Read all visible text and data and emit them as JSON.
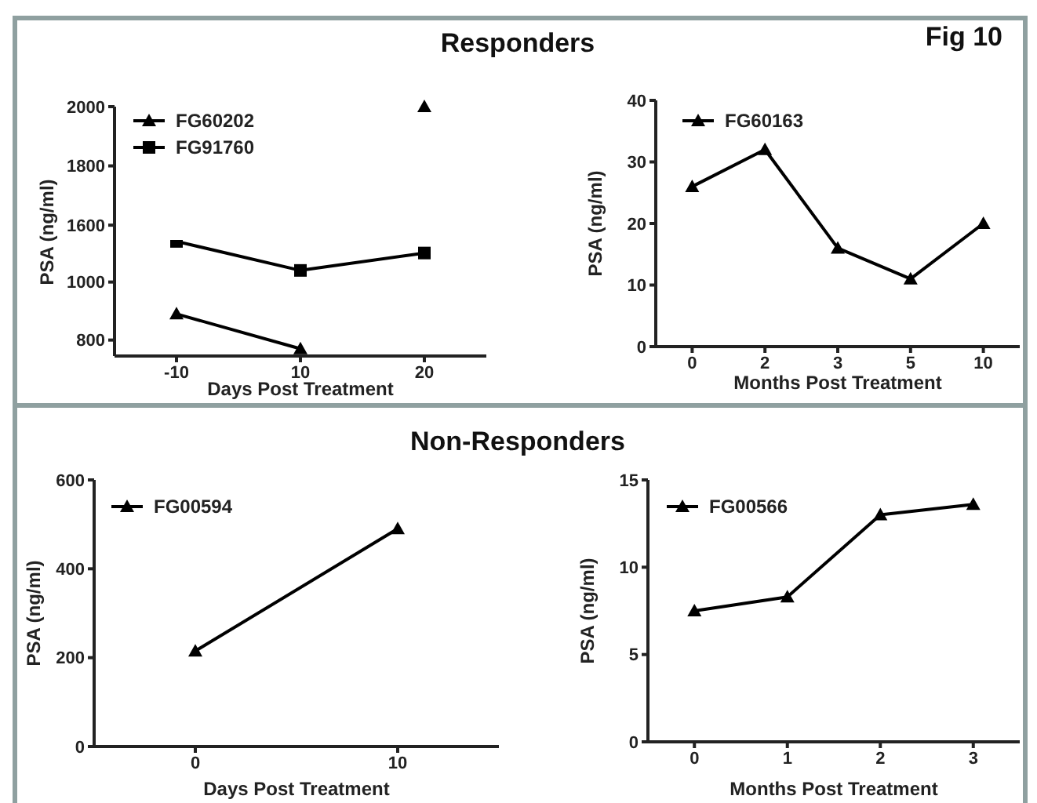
{
  "chart_data": [
    {
      "type": "line",
      "title": "Responders",
      "annotations": [
        "Fig 10"
      ],
      "categories": [
        "-10",
        "10",
        "20"
      ],
      "ylim": [
        1550,
        2000
      ],
      "yticks": [
        1600,
        1800,
        2000
      ],
      "tick_labels": "y",
      "series": [
        {
          "color": "#000000",
          "marker": "triangle",
          "values": [
            null,
            null,
            2000
          ]
        }
      ]
    },
    {
      "type": "line",
      "xlabel": "Days Post Treatment",
      "ylabel": "PSA (ng/ml)",
      "categories": [
        "-10",
        "10",
        "20"
      ],
      "ylim": [
        745,
        1145
      ],
      "yticks": [
        800,
        1000
      ],
      "legend": "top left",
      "series": [
        {
          "name": "FG60202",
          "color": "#000000",
          "marker": "triangle",
          "values": [
            890,
            770,
            null
          ]
        },
        {
          "name": "FG91760",
          "color": "#000000",
          "marker": "square",
          "values": [
            1140,
            1040,
            1100
          ]
        }
      ]
    },
    {
      "type": "line",
      "xlabel": "Months Post Treatment",
      "ylabel": "PSA (ng/ml)",
      "categories": [
        "0",
        "2",
        "3",
        "5",
        "10"
      ],
      "ylim": [
        0,
        40
      ],
      "yticks": [
        0,
        10,
        20,
        30,
        40
      ],
      "legend": "top left",
      "series": [
        {
          "name": "FG60163",
          "color": "#000000",
          "marker": "triangle",
          "values": [
            26,
            32,
            16,
            11,
            20
          ]
        }
      ]
    },
    {
      "type": "line",
      "title": "Non-Responders",
      "xlabel": "Days Post Treatment",
      "ylabel": "PSA (ng/ml)",
      "x": [
        0,
        10
      ],
      "xlim": [
        -5,
        15
      ],
      "xticks": [
        0,
        10
      ],
      "ylim": [
        0,
        600
      ],
      "yticks": [
        0,
        200,
        400,
        600
      ],
      "legend": "top left",
      "series": [
        {
          "name": "FG00594",
          "color": "#000000",
          "marker": "triangle",
          "values": [
            215,
            490
          ]
        }
      ]
    },
    {
      "type": "line",
      "xlabel": "Months Post Treatment",
      "ylabel": "PSA (ng/ml)",
      "categories": [
        "0",
        "1",
        "2",
        "3"
      ],
      "ylim": [
        0,
        15
      ],
      "yticks": [
        0,
        5,
        10,
        15
      ],
      "legend": "top left",
      "series": [
        {
          "name": "FG00566",
          "color": "#000000",
          "marker": "triangle",
          "values": [
            7.5,
            8.3,
            13,
            13.6
          ]
        }
      ]
    }
  ]
}
